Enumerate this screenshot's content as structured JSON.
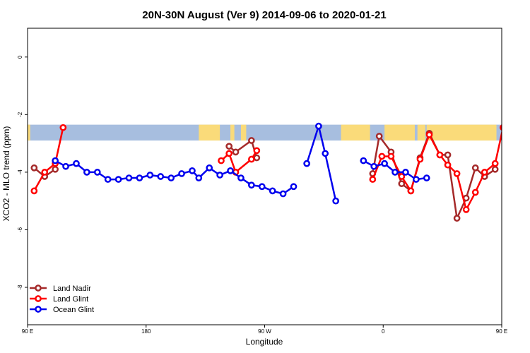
{
  "chart_data": {
    "type": "line",
    "title": "20N-30N August (Ver 9)   2014-09-06 to 2020-01-21",
    "xlabel": "Longitude",
    "ylabel": "XCO2 - MLO trend (ppm)",
    "xlim": [
      90,
      450
    ],
    "ylim": [
      -9.3,
      1.0
    ],
    "xticks": [
      {
        "value": 90,
        "label": "90 E"
      },
      {
        "value": 180,
        "label": "180"
      },
      {
        "value": 270,
        "label": "90 W"
      },
      {
        "value": 360,
        "label": "0"
      },
      {
        "value": 450,
        "label": "90 E"
      },
      {
        "value": 540,
        "label": "180"
      }
    ],
    "yticks": [
      {
        "value": 0,
        "label": "0"
      },
      {
        "value": -2,
        "label": "-2"
      },
      {
        "value": -4,
        "label": "-4"
      },
      {
        "value": -6,
        "label": "-6"
      },
      {
        "value": -8,
        "label": "-8"
      }
    ],
    "land_band": {
      "ymin": -2.9,
      "ymax": -2.35,
      "land_color": "#fadb7a",
      "ocean_color": "#a7bedf"
    },
    "legend_position": "bottom-left",
    "series": [
      {
        "name": "Land Nadir",
        "color": "#a52a2a",
        "segments": [
          [
            [
              95,
              -3.85
            ],
            [
              103,
              -4.15
            ],
            [
              111,
              -3.9
            ]
          ],
          [
            [
              243,
              -3.1
            ],
            [
              248,
              -3.3
            ],
            [
              260,
              -2.9
            ],
            [
              264,
              -3.5
            ]
          ],
          [
            [
              352,
              -4.05
            ],
            [
              357,
              -2.75
            ],
            [
              366,
              -3.3
            ],
            [
              374,
              -4.4
            ],
            [
              381,
              -4.65
            ],
            [
              388,
              -3.5
            ],
            [
              395,
              -2.65
            ],
            [
              403,
              -3.4
            ],
            [
              409,
              -3.4
            ],
            [
              416,
              -5.6
            ],
            [
              423,
              -4.9
            ],
            [
              430,
              -3.85
            ],
            [
              437,
              -4.15
            ],
            [
              445,
              -3.9
            ]
          ]
        ]
      },
      {
        "name": "Land Glint",
        "color": "#ff0000",
        "segments": [
          [
            [
              95,
              -4.65
            ],
            [
              103,
              -4.0
            ],
            [
              111,
              -3.7
            ],
            [
              117,
              -2.45
            ]
          ],
          [
            [
              237,
              -3.6
            ],
            [
              243,
              -3.35
            ],
            [
              248,
              -4.0
            ],
            [
              260,
              -3.55
            ],
            [
              264,
              -3.25
            ]
          ],
          [
            [
              352,
              -4.25
            ],
            [
              359,
              -3.45
            ],
            [
              366,
              -3.45
            ],
            [
              374,
              -4.15
            ],
            [
              381,
              -4.65
            ],
            [
              388,
              -3.55
            ],
            [
              395,
              -2.7
            ],
            [
              403,
              -3.4
            ],
            [
              409,
              -3.75
            ],
            [
              416,
              -4.05
            ],
            [
              423,
              -5.3
            ],
            [
              430,
              -4.7
            ],
            [
              437,
              -4.0
            ],
            [
              445,
              -3.7
            ],
            [
              451,
              -2.45
            ]
          ]
        ]
      },
      {
        "name": "Ocean Glint",
        "color": "#0000ee",
        "segments": [
          [
            [
              111,
              -3.6
            ],
            [
              119,
              -3.8
            ],
            [
              127,
              -3.7
            ],
            [
              135,
              -4.0
            ],
            [
              143,
              -4.0
            ],
            [
              151,
              -4.25
            ],
            [
              159,
              -4.25
            ],
            [
              167,
              -4.2
            ],
            [
              175,
              -4.2
            ],
            [
              183,
              -4.1
            ],
            [
              191,
              -4.15
            ],
            [
              199,
              -4.2
            ],
            [
              207,
              -4.05
            ],
            [
              215,
              -3.95
            ],
            [
              220,
              -4.2
            ],
            [
              228,
              -3.85
            ],
            [
              236,
              -4.1
            ],
            [
              244,
              -3.95
            ],
            [
              252,
              -4.2
            ],
            [
              260,
              -4.45
            ],
            [
              268,
              -4.5
            ],
            [
              276,
              -4.65
            ],
            [
              284,
              -4.75
            ],
            [
              292,
              -4.5
            ]
          ],
          [
            [
              302,
              -3.7
            ],
            [
              311,
              -2.4
            ],
            [
              316,
              -3.35
            ],
            [
              324,
              -5.0
            ]
          ],
          [
            [
              345,
              -3.6
            ],
            [
              353,
              -3.8
            ],
            [
              361,
              -3.7
            ],
            [
              369,
              -4.0
            ],
            [
              377,
              -4.0
            ],
            [
              385,
              -4.25
            ],
            [
              393,
              -4.2
            ]
          ]
        ]
      }
    ]
  }
}
